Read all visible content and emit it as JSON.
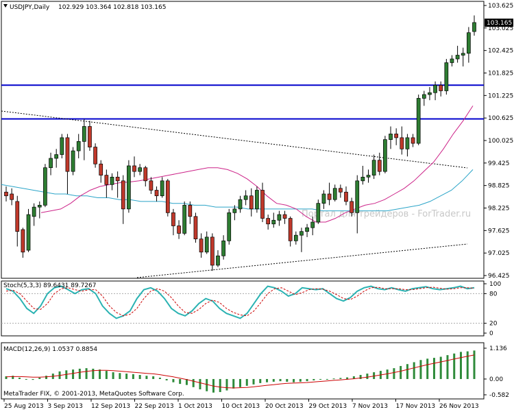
{
  "header": {
    "symbol": "USDJPY,Daily",
    "ohlc": "102.929 103.364 102.818 103.165"
  },
  "colors": {
    "background": "#ffffff",
    "bull_candle": "#2e7d32",
    "bear_candle": "#c0392b",
    "ma_fast": "#cc2288",
    "ma_slow": "#2aa4c8",
    "horizontal_lines": "#0000cc",
    "stoch_main": "#2ab2b2",
    "stoch_signal": "#cc0000",
    "macd_hist": "#2e8b3a",
    "macd_signal": "#cc0000",
    "last_price_box": "#000000"
  },
  "watermark": "Портал для трейдеров - ForTrader.ru",
  "copyright": "MetaTrader FIX, © 2001-2013, MetaQuotes Software Corp.",
  "chart_data": [
    {
      "type": "candlestick",
      "title": "USDJPY,Daily",
      "y_ticks": [
        "103.625",
        "103.025",
        "102.425",
        "101.825",
        "101.225",
        "100.625",
        "100.025",
        "99.425",
        "98.825",
        "98.225",
        "97.625",
        "97.025",
        "96.425"
      ],
      "ylim": [
        96.425,
        103.625
      ],
      "last_price": "103.165",
      "x_labels": [
        "25 Aug 2013",
        "3 Sep 2013",
        "12 Sep 2013",
        "22 Sep 2013",
        "1 Oct 2013",
        "10 Oct 2013",
        "20 Oct 2013",
        "29 Oct 2013",
        "7 Nov 2013",
        "17 Nov 2013",
        "26 Nov 2013"
      ],
      "horizontal_levels": [
        101.5,
        100.6
      ],
      "candles": [
        {
          "o": 98.65,
          "h": 98.8,
          "l": 98.4,
          "c": 98.55
        },
        {
          "o": 98.6,
          "h": 98.75,
          "l": 98.3,
          "c": 98.45
        },
        {
          "o": 98.4,
          "h": 98.55,
          "l": 97.2,
          "c": 97.6
        },
        {
          "o": 97.65,
          "h": 97.7,
          "l": 96.9,
          "c": 97.05
        },
        {
          "o": 97.1,
          "h": 98.2,
          "l": 97.05,
          "c": 98.05
        },
        {
          "o": 98.0,
          "h": 98.35,
          "l": 97.75,
          "c": 98.25
        },
        {
          "o": 98.25,
          "h": 98.4,
          "l": 97.95,
          "c": 98.3
        },
        {
          "o": 98.3,
          "h": 99.4,
          "l": 98.25,
          "c": 99.3
        },
        {
          "o": 99.3,
          "h": 99.7,
          "l": 99.1,
          "c": 99.55
        },
        {
          "o": 99.55,
          "h": 99.8,
          "l": 99.3,
          "c": 99.65
        },
        {
          "o": 99.65,
          "h": 100.2,
          "l": 99.55,
          "c": 100.1
        },
        {
          "o": 100.1,
          "h": 100.2,
          "l": 98.6,
          "c": 99.2
        },
        {
          "o": 99.2,
          "h": 99.85,
          "l": 99.1,
          "c": 99.75
        },
        {
          "o": 99.75,
          "h": 100.2,
          "l": 99.55,
          "c": 100.0
        },
        {
          "o": 100.0,
          "h": 100.6,
          "l": 99.5,
          "c": 100.4
        },
        {
          "o": 100.4,
          "h": 100.55,
          "l": 99.75,
          "c": 99.85
        },
        {
          "o": 99.85,
          "h": 99.95,
          "l": 99.3,
          "c": 99.4
        },
        {
          "o": 99.4,
          "h": 99.5,
          "l": 98.9,
          "c": 99.1
        },
        {
          "o": 99.1,
          "h": 99.25,
          "l": 98.5,
          "c": 98.85
        },
        {
          "o": 98.85,
          "h": 99.15,
          "l": 98.7,
          "c": 99.05
        },
        {
          "o": 99.05,
          "h": 99.2,
          "l": 98.5,
          "c": 98.95
        },
        {
          "o": 98.95,
          "h": 99.1,
          "l": 97.8,
          "c": 98.2
        },
        {
          "o": 98.2,
          "h": 99.5,
          "l": 98.1,
          "c": 99.35
        },
        {
          "o": 99.35,
          "h": 99.6,
          "l": 99.05,
          "c": 99.2
        },
        {
          "o": 99.2,
          "h": 99.4,
          "l": 99.1,
          "c": 99.3
        },
        {
          "o": 99.3,
          "h": 99.35,
          "l": 98.8,
          "c": 98.95
        },
        {
          "o": 98.95,
          "h": 99.05,
          "l": 98.6,
          "c": 98.7
        },
        {
          "o": 98.7,
          "h": 98.8,
          "l": 98.4,
          "c": 98.55
        },
        {
          "o": 98.55,
          "h": 99.05,
          "l": 98.5,
          "c": 98.95
        },
        {
          "o": 98.95,
          "h": 99.0,
          "l": 98.0,
          "c": 98.1
        },
        {
          "o": 98.1,
          "h": 98.2,
          "l": 97.5,
          "c": 97.75
        },
        {
          "o": 97.75,
          "h": 97.9,
          "l": 97.4,
          "c": 97.55
        },
        {
          "o": 97.55,
          "h": 98.4,
          "l": 97.5,
          "c": 98.3
        },
        {
          "o": 98.3,
          "h": 98.4,
          "l": 97.8,
          "c": 98.0
        },
        {
          "o": 98.0,
          "h": 98.1,
          "l": 97.3,
          "c": 97.4
        },
        {
          "o": 97.4,
          "h": 97.55,
          "l": 96.9,
          "c": 97.05
        },
        {
          "o": 97.05,
          "h": 97.6,
          "l": 97.0,
          "c": 97.45
        },
        {
          "o": 97.45,
          "h": 97.55,
          "l": 96.55,
          "c": 96.7
        },
        {
          "o": 96.7,
          "h": 97.1,
          "l": 96.65,
          "c": 96.95
        },
        {
          "o": 96.95,
          "h": 97.5,
          "l": 96.85,
          "c": 97.35
        },
        {
          "o": 97.35,
          "h": 98.2,
          "l": 97.25,
          "c": 98.1
        },
        {
          "o": 98.1,
          "h": 98.3,
          "l": 97.9,
          "c": 98.2
        },
        {
          "o": 98.2,
          "h": 98.55,
          "l": 98.1,
          "c": 98.45
        },
        {
          "o": 98.45,
          "h": 98.7,
          "l": 98.3,
          "c": 98.55
        },
        {
          "o": 98.55,
          "h": 98.75,
          "l": 98.0,
          "c": 98.2
        },
        {
          "o": 98.2,
          "h": 98.8,
          "l": 98.1,
          "c": 98.7
        },
        {
          "o": 98.7,
          "h": 98.9,
          "l": 97.85,
          "c": 97.95
        },
        {
          "o": 97.95,
          "h": 98.05,
          "l": 97.65,
          "c": 97.8
        },
        {
          "o": 97.8,
          "h": 98.1,
          "l": 97.7,
          "c": 97.9
        },
        {
          "o": 97.9,
          "h": 98.15,
          "l": 97.75,
          "c": 98.05
        },
        {
          "o": 98.05,
          "h": 98.15,
          "l": 97.8,
          "c": 97.95
        },
        {
          "o": 97.95,
          "h": 98.0,
          "l": 97.2,
          "c": 97.35
        },
        {
          "o": 97.35,
          "h": 97.6,
          "l": 97.25,
          "c": 97.5
        },
        {
          "o": 97.5,
          "h": 97.7,
          "l": 97.05,
          "c": 97.6
        },
        {
          "o": 97.6,
          "h": 97.8,
          "l": 97.45,
          "c": 97.7
        },
        {
          "o": 97.7,
          "h": 98.0,
          "l": 97.5,
          "c": 97.85
        },
        {
          "o": 97.85,
          "h": 98.45,
          "l": 97.8,
          "c": 98.35
        },
        {
          "o": 98.35,
          "h": 98.7,
          "l": 98.2,
          "c": 98.6
        },
        {
          "o": 98.6,
          "h": 98.9,
          "l": 98.3,
          "c": 98.45
        },
        {
          "o": 98.45,
          "h": 98.85,
          "l": 98.4,
          "c": 98.75
        },
        {
          "o": 98.75,
          "h": 98.85,
          "l": 98.5,
          "c": 98.65
        },
        {
          "o": 98.65,
          "h": 98.8,
          "l": 98.3,
          "c": 98.4
        },
        {
          "o": 98.4,
          "h": 98.5,
          "l": 98.0,
          "c": 98.1
        },
        {
          "o": 98.1,
          "h": 99.1,
          "l": 97.55,
          "c": 98.95
        },
        {
          "o": 98.95,
          "h": 99.35,
          "l": 98.85,
          "c": 99.05
        },
        {
          "o": 99.05,
          "h": 99.25,
          "l": 98.9,
          "c": 99.1
        },
        {
          "o": 99.1,
          "h": 99.65,
          "l": 99.0,
          "c": 99.5
        },
        {
          "o": 99.5,
          "h": 99.7,
          "l": 99.1,
          "c": 99.2
        },
        {
          "o": 99.2,
          "h": 100.15,
          "l": 99.15,
          "c": 100.05
        },
        {
          "o": 100.05,
          "h": 100.4,
          "l": 99.8,
          "c": 100.2
        },
        {
          "o": 100.2,
          "h": 100.35,
          "l": 99.9,
          "c": 100.1
        },
        {
          "o": 100.1,
          "h": 100.4,
          "l": 99.65,
          "c": 99.8
        },
        {
          "o": 99.8,
          "h": 100.2,
          "l": 99.6,
          "c": 100.1
        },
        {
          "o": 100.1,
          "h": 100.2,
          "l": 99.85,
          "c": 99.95
        },
        {
          "o": 99.95,
          "h": 101.25,
          "l": 99.9,
          "c": 101.15
        },
        {
          "o": 101.15,
          "h": 101.35,
          "l": 100.95,
          "c": 101.25
        },
        {
          "o": 101.25,
          "h": 101.45,
          "l": 101.1,
          "c": 101.3
        },
        {
          "o": 101.3,
          "h": 101.6,
          "l": 101.1,
          "c": 101.5
        },
        {
          "o": 101.5,
          "h": 101.6,
          "l": 101.2,
          "c": 101.35
        },
        {
          "o": 101.35,
          "h": 102.2,
          "l": 101.25,
          "c": 102.1
        },
        {
          "o": 102.1,
          "h": 102.3,
          "l": 102.0,
          "c": 102.2
        },
        {
          "o": 102.2,
          "h": 102.55,
          "l": 102.1,
          "c": 102.3
        },
        {
          "o": 102.3,
          "h": 102.5,
          "l": 102.0,
          "c": 102.35
        },
        {
          "o": 102.35,
          "h": 103.05,
          "l": 102.1,
          "c": 102.9
        },
        {
          "o": 102.93,
          "h": 103.36,
          "l": 102.82,
          "c": 103.17
        }
      ],
      "ma_fast": [
        98.1,
        98.15,
        98.2,
        98.35,
        98.55,
        98.7,
        98.8,
        98.85,
        98.9,
        98.92,
        98.95,
        99.0,
        99.05,
        99.1,
        99.15,
        99.2,
        99.25,
        99.3,
        99.3,
        99.25,
        99.15,
        99.0,
        98.8,
        98.55,
        98.35,
        98.3,
        98.2,
        98.0,
        97.85,
        97.85,
        97.95,
        98.1,
        98.2,
        98.3,
        98.35,
        98.45,
        98.6,
        98.75,
        98.95,
        99.2,
        99.45,
        99.8,
        100.2,
        100.55,
        100.95
      ],
      "ma_slow": [
        98.85,
        98.8,
        98.75,
        98.7,
        98.65,
        98.6,
        98.6,
        98.55,
        98.55,
        98.5,
        98.5,
        98.45,
        98.45,
        98.4,
        98.4,
        98.4,
        98.35,
        98.35,
        98.3,
        98.3,
        98.25,
        98.25,
        98.25,
        98.2,
        98.2,
        98.2,
        98.2,
        98.2,
        98.2,
        98.2,
        98.15,
        98.15,
        98.15,
        98.15,
        98.15,
        98.15,
        98.15,
        98.2,
        98.25,
        98.3,
        98.4,
        98.55,
        98.7,
        98.95,
        99.25
      ]
    },
    {
      "type": "line",
      "title": "Stoch(5,3,3) 89.6431 89.7267",
      "y_ticks": [
        "100",
        "80",
        "20",
        "0"
      ],
      "ylim": [
        0,
        100
      ],
      "series": [
        {
          "name": "main",
          "values": [
            90,
            85,
            70,
            50,
            40,
            55,
            80,
            92,
            95,
            88,
            80,
            88,
            90,
            80,
            55,
            40,
            30,
            35,
            45,
            70,
            88,
            92,
            85,
            70,
            50,
            40,
            35,
            45,
            60,
            70,
            65,
            50,
            40,
            35,
            30,
            40,
            60,
            80,
            95,
            92,
            85,
            75,
            80,
            92,
            90,
            88,
            90,
            80,
            70,
            65,
            72,
            85,
            92,
            95,
            90,
            88,
            92,
            88,
            85,
            90,
            92,
            94,
            90,
            88,
            90,
            92,
            95,
            90,
            92
          ]
        },
        {
          "name": "signal",
          "values": [
            85,
            87,
            80,
            65,
            50,
            48,
            60,
            80,
            90,
            92,
            88,
            85,
            88,
            88,
            75,
            55,
            42,
            35,
            38,
            50,
            70,
            85,
            90,
            85,
            72,
            55,
            42,
            40,
            48,
            60,
            67,
            62,
            50,
            42,
            37,
            35,
            45,
            62,
            80,
            90,
            92,
            85,
            78,
            82,
            88,
            90,
            89,
            85,
            78,
            70,
            68,
            75,
            85,
            92,
            93,
            90,
            90,
            90,
            88,
            88,
            90,
            92,
            93,
            91,
            89,
            90,
            92,
            92,
            91
          ]
        }
      ]
    },
    {
      "type": "bar",
      "title": "MACD(12,26,9) 1.0537 0.8854",
      "y_ticks": [
        "1.136",
        "0.00",
        "-0.582"
      ],
      "ylim": [
        -0.582,
        1.136
      ],
      "series": [
        {
          "name": "main",
          "values": [
            0.1,
            0.12,
            0.05,
            -0.02,
            -0.03,
            0.05,
            0.12,
            0.2,
            0.28,
            0.32,
            0.35,
            0.38,
            0.4,
            0.38,
            0.35,
            0.3,
            0.25,
            0.22,
            0.2,
            0.18,
            0.15,
            0.12,
            0.1,
            0.05,
            -0.05,
            -0.12,
            -0.18,
            -0.22,
            -0.3,
            -0.38,
            -0.45,
            -0.5,
            -0.48,
            -0.42,
            -0.35,
            -0.3,
            -0.25,
            -0.2,
            -0.15,
            -0.12,
            -0.1,
            -0.08,
            -0.1,
            -0.12,
            -0.1,
            -0.08,
            -0.05,
            -0.02,
            0.0,
            0.02,
            0.04,
            0.06,
            0.1,
            0.15,
            0.2,
            0.25,
            0.3,
            0.35,
            0.4,
            0.48,
            0.55,
            0.62,
            0.7,
            0.75,
            0.78,
            0.82,
            0.88,
            0.94,
            1.0,
            1.02,
            1.05
          ]
        },
        {
          "name": "signal",
          "values": [
            0.08,
            0.09,
            0.09,
            0.08,
            0.07,
            0.07,
            0.08,
            0.1,
            0.13,
            0.17,
            0.21,
            0.25,
            0.28,
            0.31,
            0.32,
            0.32,
            0.31,
            0.29,
            0.27,
            0.25,
            0.23,
            0.21,
            0.19,
            0.16,
            0.12,
            0.08,
            0.03,
            -0.02,
            -0.08,
            -0.14,
            -0.2,
            -0.26,
            -0.3,
            -0.32,
            -0.33,
            -0.32,
            -0.31,
            -0.29,
            -0.26,
            -0.23,
            -0.21,
            -0.18,
            -0.16,
            -0.15,
            -0.14,
            -0.13,
            -0.11,
            -0.09,
            -0.07,
            -0.05,
            -0.03,
            -0.01,
            0.01,
            0.04,
            0.07,
            0.11,
            0.15,
            0.19,
            0.24,
            0.29,
            0.35,
            0.41,
            0.47,
            0.53,
            0.58,
            0.63,
            0.68,
            0.74,
            0.79,
            0.84,
            0.885
          ]
        }
      ]
    }
  ]
}
